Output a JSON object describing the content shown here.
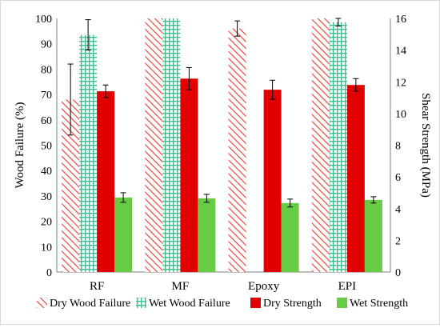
{
  "chart_data": {
    "type": "bar",
    "categories": [
      "RF",
      "MF",
      "Epoxy",
      "EPI"
    ],
    "y_left": {
      "label": "Wood Failure (%)",
      "min": 0,
      "max": 100,
      "step": 10
    },
    "y_right": {
      "label": "Shear Strength (MPa)",
      "min": 0,
      "max": 16,
      "step": 2
    },
    "series": [
      {
        "name": "Dry Wood Failure",
        "axis": "left",
        "pattern": "diagonal-hatch",
        "color": "#e8392f",
        "values": [
          68,
          100,
          96,
          100
        ],
        "errors": [
          14,
          0,
          3,
          0
        ]
      },
      {
        "name": "Wet Wood Failure",
        "axis": "left",
        "pattern": "grid-hatch",
        "color": "#3cbf8f",
        "values": [
          93.5,
          100,
          null,
          98.5
        ],
        "errors": [
          6,
          0,
          null,
          1.5
        ]
      },
      {
        "name": "Dry Strength",
        "axis": "right",
        "pattern": "solid",
        "color": "#e00000",
        "values": [
          11.4,
          12.2,
          11.5,
          11.8
        ],
        "errors": [
          0.4,
          0.7,
          0.6,
          0.4
        ]
      },
      {
        "name": "Wet Strength",
        "axis": "right",
        "pattern": "solid",
        "color": "#66cc44",
        "values": [
          4.7,
          4.65,
          4.35,
          4.55
        ],
        "errors": [
          0.3,
          0.25,
          0.25,
          0.2
        ]
      }
    ],
    "legend_position": "bottom",
    "grid": false
  }
}
